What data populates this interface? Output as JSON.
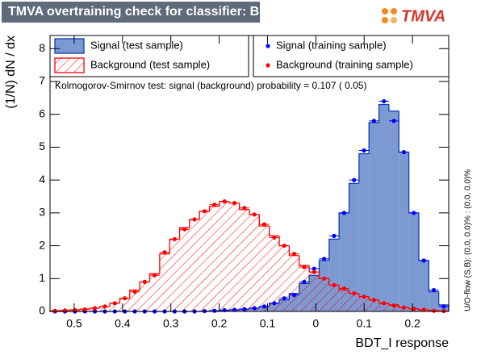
{
  "chart_data": {
    "type": "histogram",
    "title": "TMVA overtraining check for classifier: BDT_I",
    "logo": "TMVA",
    "x_label": "BDT_I response",
    "y_label": "(1/N) dN / dx",
    "annotation": "Kolmogorov-Smirnov test: signal (background) probability = 0.107 ( 0.05)",
    "side_note": "U/O-flow (S,B): (0.0, 0.0)% : (0.0, 0.0)%",
    "bins": [
      -0.55,
      -0.5294,
      -0.5088,
      -0.4881,
      -0.4675,
      -0.4469,
      -0.4263,
      -0.4056,
      -0.385,
      -0.3644,
      -0.3438,
      -0.3231,
      -0.3025,
      -0.2819,
      -0.2613,
      -0.2406,
      -0.22,
      -0.1994,
      -0.1788,
      -0.1581,
      -0.1375,
      -0.1169,
      -0.0963,
      -0.0756,
      -0.055,
      -0.0344,
      -0.0138,
      0.0069,
      0.0275,
      0.0481,
      0.0688,
      0.0894,
      0.11,
      0.1306,
      0.1513,
      0.1719,
      0.1925,
      0.2131,
      0.2338,
      0.2544,
      0.275
    ],
    "xlim": [
      -0.55,
      0.275
    ],
    "ylim": [
      0,
      8.4
    ],
    "xticks": [
      {
        "value": -0.5,
        "label": "0.5"
      },
      {
        "value": -0.4,
        "label": "0.4"
      },
      {
        "value": -0.3,
        "label": "0.3"
      },
      {
        "value": -0.2,
        "label": "0.2"
      },
      {
        "value": -0.1,
        "label": "0.1"
      },
      0,
      0.1,
      0.2
    ],
    "yticks": [
      0,
      1,
      2,
      3,
      4,
      5,
      6,
      7,
      8
    ],
    "series": [
      {
        "name": "Signal (test sample)",
        "style": "filled",
        "color": "#0b3fb5",
        "fill": "#7d99d1",
        "values": [
          0,
          0,
          0,
          0,
          0,
          0,
          0,
          0,
          0,
          0,
          0,
          0,
          0,
          0,
          0,
          0.01,
          0.02,
          0.03,
          0.05,
          0.07,
          0.1,
          0.15,
          0.25,
          0.35,
          0.55,
          0.85,
          1.1,
          1.55,
          2.2,
          3.0,
          3.9,
          4.8,
          5.75,
          6.3,
          6.1,
          4.85,
          3.0,
          1.55,
          0.6,
          0.2
        ]
      },
      {
        "name": "Background (test sample)",
        "style": "hatched",
        "color": "#ff0000",
        "values": [
          0.02,
          0.03,
          0.05,
          0.07,
          0.1,
          0.15,
          0.25,
          0.4,
          0.65,
          0.9,
          1.15,
          1.75,
          2.2,
          2.55,
          2.8,
          3.05,
          3.2,
          3.35,
          3.3,
          3.1,
          2.95,
          2.6,
          2.3,
          2.0,
          1.7,
          1.4,
          1.2,
          1.0,
          0.8,
          0.65,
          0.55,
          0.45,
          0.35,
          0.25,
          0.2,
          0.12,
          0.08,
          0.05,
          0.03,
          0.01
        ]
      },
      {
        "name": "Signal (training sample)",
        "style": "points",
        "color": "#0000ff",
        "values": [
          0,
          0,
          0,
          0,
          0,
          0,
          0,
          0,
          0,
          0,
          0,
          0,
          0,
          0,
          0,
          0.01,
          0.02,
          0.04,
          0.05,
          0.07,
          0.1,
          0.15,
          0.25,
          0.4,
          0.5,
          0.9,
          1.3,
          1.6,
          2.3,
          3.0,
          4.0,
          4.9,
          5.8,
          6.4,
          5.8,
          4.85,
          3.0,
          1.55,
          0.65,
          0.15
        ]
      },
      {
        "name": "Background (training sample)",
        "style": "points",
        "color": "#ff0000",
        "values": [
          0.02,
          0.03,
          0.04,
          0.06,
          0.1,
          0.15,
          0.25,
          0.4,
          0.6,
          0.9,
          1.1,
          1.8,
          2.2,
          2.5,
          2.8,
          3.05,
          3.25,
          3.35,
          3.3,
          3.15,
          2.95,
          2.65,
          2.25,
          2.0,
          1.75,
          1.35,
          1.2,
          1.0,
          0.8,
          0.7,
          0.55,
          0.45,
          0.35,
          0.25,
          0.18,
          0.12,
          0.08,
          0.05,
          0.02,
          0.01
        ]
      }
    ]
  }
}
